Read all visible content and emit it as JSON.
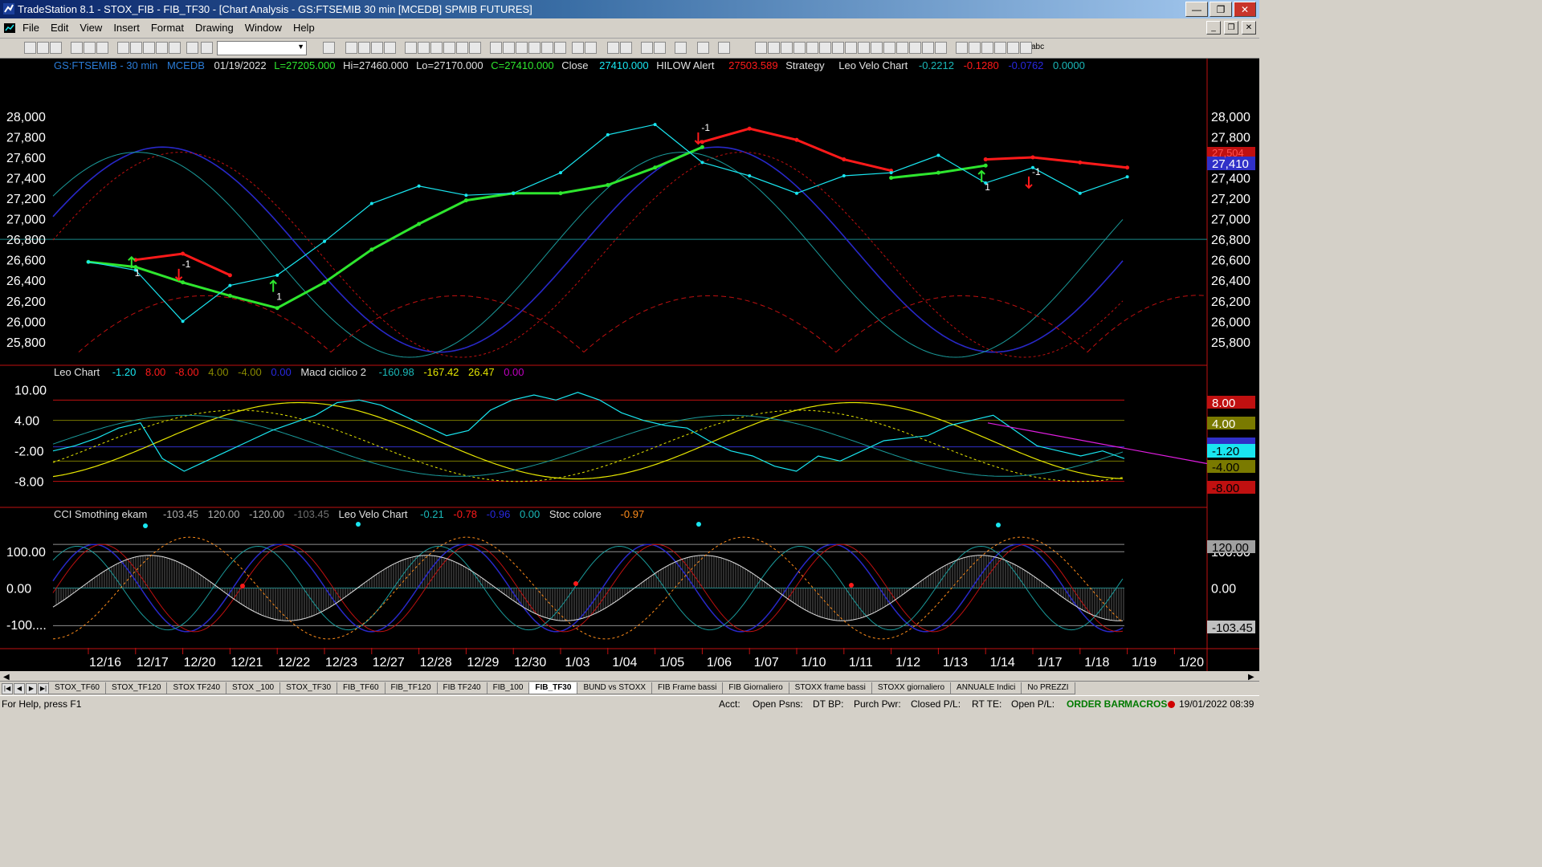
{
  "window": {
    "title": "TradeStation 8.1 - STOX_FIB - FIB_TF30 - [Chart Analysis - GS:FTSEMIB  30 min  [MCEDB] SPMIB FUTURES]",
    "minimize": "—",
    "maximize": "❐",
    "close": "✕"
  },
  "menu": [
    "File",
    "Edit",
    "View",
    "Insert",
    "Format",
    "Drawing",
    "Window",
    "Help"
  ],
  "toolbar": {
    "draw_text_label": "abc"
  },
  "header": {
    "symbol": "GS:FTSEMIB - 30 min",
    "datafeed": "MCEDB",
    "date": "01/19/2022",
    "low_field": "L=27205.000",
    "high_field": "Hi=27460.000",
    "lo_field": "Lo=27170.000",
    "close_field": "C=27410.000",
    "close_label": "Close",
    "close_value": "27410.000",
    "alert_label": "HILOW Alert",
    "alert_value": "27503.589",
    "strategy_label": "Strategy",
    "velo_label": "Leo Velo Chart",
    "velo_values": [
      "-0.2212",
      "-0.1280",
      "-0.0762",
      "0.0000"
    ]
  },
  "pane2_header": {
    "name": "Leo Chart",
    "values": [
      "-1.20",
      "8.00",
      "-8.00",
      "4.00",
      "-4.00",
      "0.00"
    ],
    "macd_name": "Macd ciclico 2",
    "macd_values": [
      "-160.98",
      "-167.42",
      "26.47",
      "0.00"
    ]
  },
  "pane3_header": {
    "name": "CCI Smothing ekam",
    "values": [
      "-103.45",
      "120.00",
      "-120.00",
      "-103.45"
    ],
    "velo_name": "Leo Velo Chart",
    "velo_values": [
      "-0.21",
      "-0.78",
      "-0.96",
      "0.00"
    ],
    "stoc_name": "Stoc colore",
    "stoc_value": "-0.97"
  },
  "price_axis_labels": [
    "28,000",
    "27,800",
    "27,600",
    "27,400",
    "27,200",
    "27,000",
    "26,800",
    "26,600",
    "26,400",
    "26,200",
    "26,000",
    "25,800"
  ],
  "price_tags": {
    "last": "27,410",
    "alert": "27,504"
  },
  "pane2_axis_labels": [
    "10.00",
    "4.00",
    "-2.00",
    "-8.00"
  ],
  "pane2_tags": [
    "8.00",
    "4.00",
    "-1.20",
    "-4.00",
    "-8.00"
  ],
  "pane3_axis_labels": [
    "100.00",
    "0.00",
    "-100...."
  ],
  "pane3_right_labels": [
    "100.00",
    "0.00"
  ],
  "pane3_tags": [
    "120.00",
    "-103.45"
  ],
  "signal_labels": {
    "minus_one": "-1",
    "one": "1"
  },
  "x_axis_dates": [
    "12/16",
    "12/17",
    "12/20",
    "12/21",
    "12/22",
    "12/23",
    "12/27",
    "12/28",
    "12/29",
    "12/30",
    "1/03",
    "1/04",
    "1/05",
    "1/06",
    "1/07",
    "1/10",
    "1/11",
    "1/12",
    "1/13",
    "1/14",
    "1/17",
    "1/18",
    "1/19",
    "1/20"
  ],
  "chart_data": {
    "type": "line",
    "title": "GS:FTSEMIB - 30 min",
    "x": [
      "12/16",
      "12/17",
      "12/20",
      "12/21",
      "12/22",
      "12/23",
      "12/27",
      "12/28",
      "12/29",
      "12/30",
      "1/03",
      "1/04",
      "1/05",
      "1/06",
      "1/07",
      "1/10",
      "1/11",
      "1/12",
      "1/13",
      "1/14",
      "1/17",
      "1/18",
      "1/19",
      "1/20"
    ],
    "ylim": [
      25650,
      28250
    ],
    "series": [
      {
        "values": [
          26580,
          26500,
          26000,
          26350,
          26450,
          26780,
          27150,
          27320,
          27230,
          27250,
          27450,
          27820,
          27920,
          27550,
          27420,
          27250,
          27420,
          27450,
          27620,
          27350,
          27500,
          27250,
          27410,
          null
        ]
      },
      {
        "values": [
          26580,
          26530,
          26380,
          26250,
          26130,
          26380,
          26700,
          26950,
          27180,
          27250,
          27250,
          27330,
          27500,
          27700,
          null,
          null,
          null,
          27400,
          27450,
          27520,
          null,
          null,
          null,
          null
        ]
      },
      {
        "values": [
          null,
          26600,
          26660,
          26450,
          null,
          null,
          null,
          null,
          null,
          null,
          null,
          null,
          null,
          27750,
          27880,
          27770,
          27580,
          27470,
          null,
          27580,
          27600,
          27550,
          27500,
          null
        ]
      }
    ],
    "pane2": {
      "ylim": [
        -12,
        12
      ],
      "hlines": [
        8,
        4,
        -1.2,
        -4,
        -8
      ]
    },
    "pane3": {
      "ylim": [
        -160,
        180
      ],
      "hlines": [
        120,
        100,
        0,
        -103.45
      ]
    }
  },
  "tabs": [
    "STOX_TF60",
    "STOX_TF120",
    "STOX TF240",
    "STOX _100",
    "STOX_TF30",
    "FIB_TF60",
    "FIB_TF120",
    "FIB TF240",
    "FIB_100",
    "FIB_TF30",
    "BUND vs STOXX",
    "FIB Frame bassi",
    "FIB Giornaliero",
    "STOXX frame bassi",
    "STOXX giornaliero",
    "ANNUALE Indici",
    "No PREZZI"
  ],
  "active_tab": "FIB_TF30",
  "status": {
    "help": "For Help, press F1",
    "acct": "Acct:",
    "open_psns": "Open Psns:",
    "dt_bp": "DT BP:",
    "purch_pwr": "Purch Pwr:",
    "closed_pl": "Closed P/L:",
    "rt_te": "RT TE:",
    "open_pl": "Open P/L:",
    "order_bar": "ORDER BAR",
    "macros": "MACROS",
    "datetime": "19/01/2022 08:39"
  },
  "colors": {
    "price": "#19e6f0",
    "alert_up": "#2ee62e",
    "alert_down": "#ff1a1a",
    "cycle_blue": "#2828c8",
    "cycle_red": "#c01010",
    "cycle_teal": "#1a9a9a",
    "macd_yellow": "#e6e600",
    "trend_magenta": "#e01ee0"
  }
}
